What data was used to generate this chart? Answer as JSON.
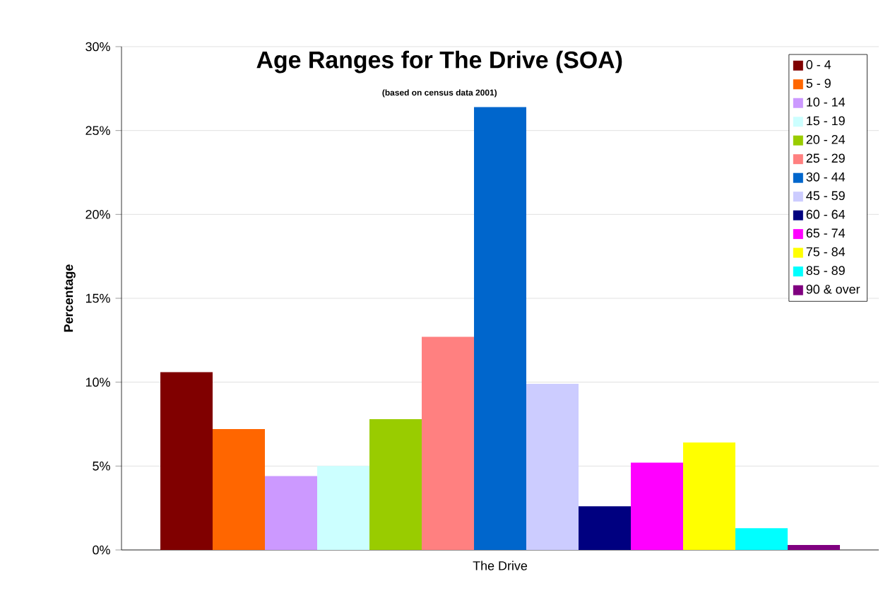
{
  "chart_data": {
    "type": "bar",
    "title": "Age Ranges for The Drive (SOA)",
    "subtitle": "(based on census data 2001)",
    "ylabel": "Percentage",
    "categories": [
      "The Drive"
    ],
    "series": [
      {
        "name": "0 - 4",
        "color": "#800000",
        "values": [
          10.6
        ]
      },
      {
        "name": "5 - 9",
        "color": "#ff6600",
        "values": [
          7.2
        ]
      },
      {
        "name": "10 - 14",
        "color": "#cc99ff",
        "values": [
          4.4
        ]
      },
      {
        "name": "15 - 19",
        "color": "#ccffff",
        "values": [
          5.0
        ]
      },
      {
        "name": "20 - 24",
        "color": "#99cc00",
        "values": [
          7.8
        ]
      },
      {
        "name": "25 - 29",
        "color": "#ff8080",
        "values": [
          12.7
        ]
      },
      {
        "name": "30 - 44",
        "color": "#0066cc",
        "values": [
          26.4
        ]
      },
      {
        "name": "45 - 59",
        "color": "#ccccff",
        "values": [
          9.9
        ]
      },
      {
        "name": "60 - 64",
        "color": "#000080",
        "values": [
          2.6
        ]
      },
      {
        "name": "65 - 74",
        "color": "#ff00ff",
        "values": [
          5.2
        ]
      },
      {
        "name": "75 - 84",
        "color": "#ffff00",
        "values": [
          6.4
        ]
      },
      {
        "name": "85 - 89",
        "color": "#00ffff",
        "values": [
          1.3
        ]
      },
      {
        "name": "90 & over",
        "color": "#800080",
        "values": [
          0.3
        ]
      }
    ],
    "ylim": [
      0,
      30
    ],
    "yticks": [
      {
        "value": 0,
        "label": "0%"
      },
      {
        "value": 5,
        "label": "5%"
      },
      {
        "value": 10,
        "label": "10%"
      },
      {
        "value": 15,
        "label": "15%"
      },
      {
        "value": 20,
        "label": "20%"
      },
      {
        "value": 25,
        "label": "25%"
      },
      {
        "value": 30,
        "label": "30%"
      }
    ],
    "grid": "y",
    "legend": "top right"
  }
}
